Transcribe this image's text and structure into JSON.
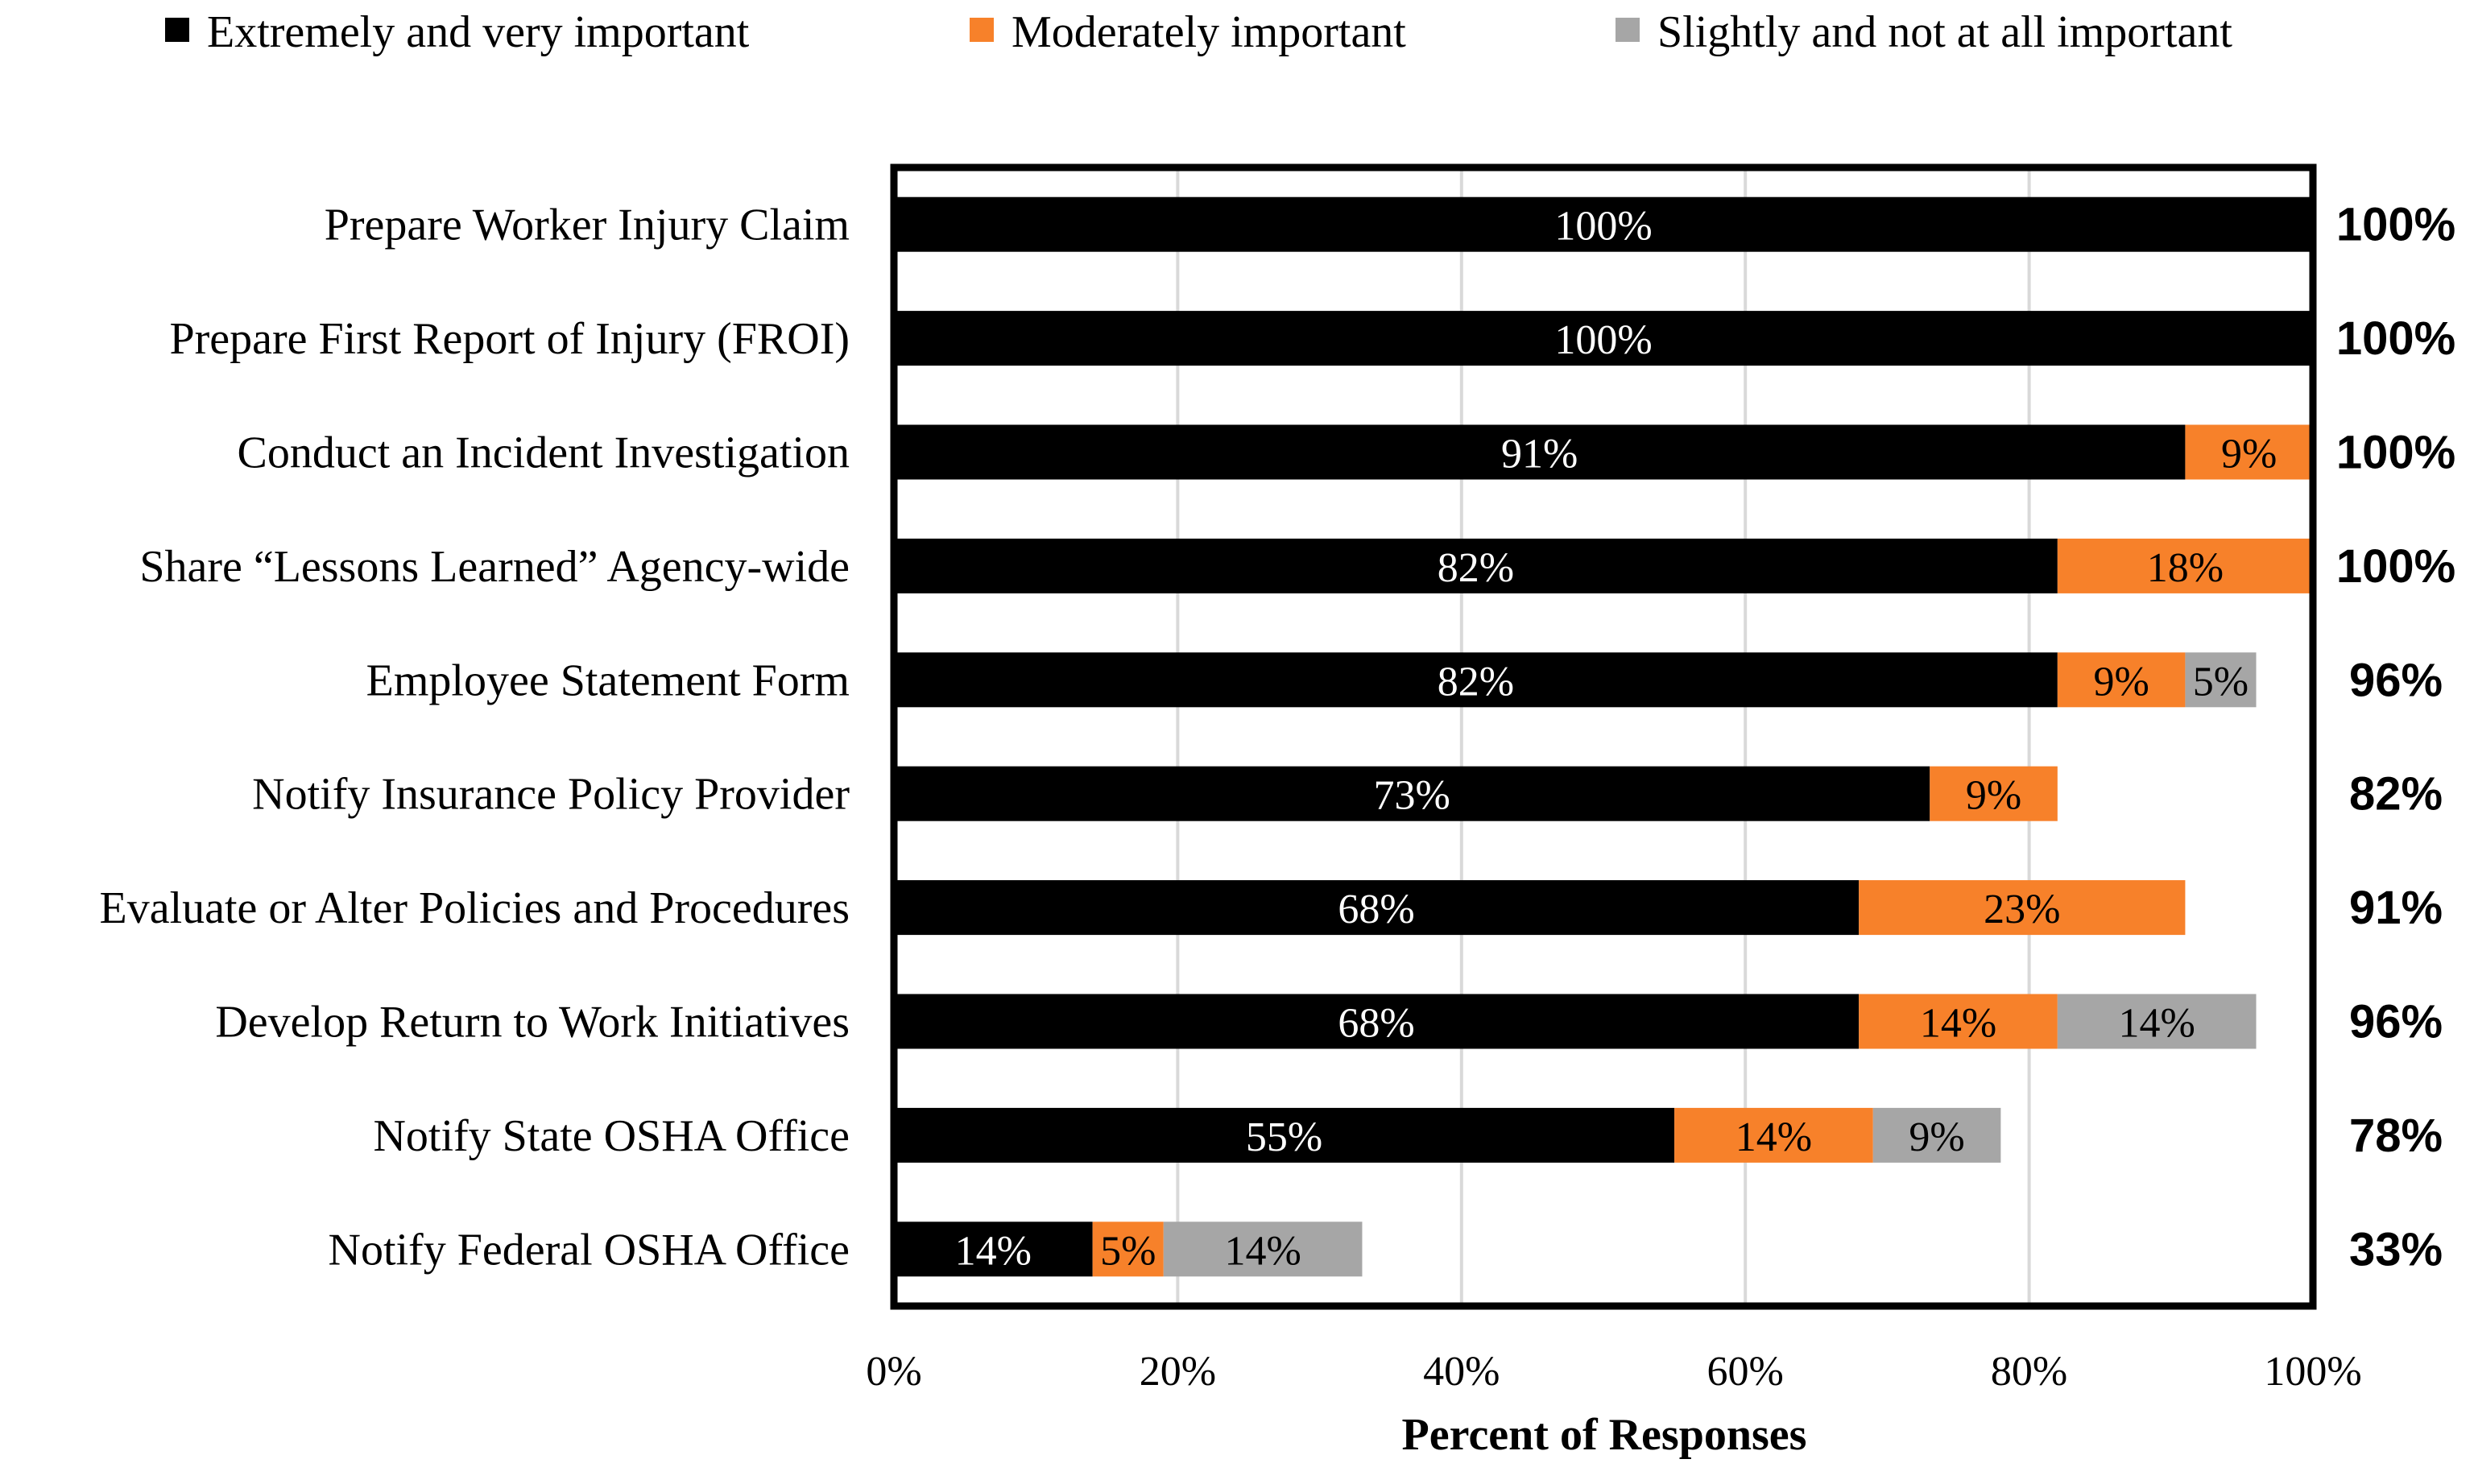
{
  "chart_data": {
    "type": "bar",
    "orientation": "horizontal",
    "stacked": true,
    "categories": [
      "Prepare Worker Injury Claim",
      "Prepare First Report of Injury (FROI)",
      "Conduct an Incident Investigation",
      "Share “Lessons Learned” Agency-wide",
      "Employee Statement Form",
      "Notify Insurance Policy Provider",
      "Evaluate or Alter Policies and Procedures",
      "Develop Return to Work Initiatives",
      "Notify State OSHA Office",
      "Notify Federal OSHA Office"
    ],
    "series": [
      {
        "name": "Extremely and very important",
        "color": "#000000",
        "label_color": "#ffffff",
        "values": [
          100,
          100,
          91,
          82,
          82,
          73,
          68,
          68,
          55,
          14
        ],
        "labels": [
          "100%",
          "100%",
          "91%",
          "82%",
          "82%",
          "73%",
          "68%",
          "68%",
          "55%",
          "14%"
        ]
      },
      {
        "name": "Moderately important",
        "color": "#f7812a",
        "label_color": "#000000",
        "values": [
          0,
          0,
          9,
          18,
          9,
          9,
          23,
          14,
          14,
          5
        ],
        "labels": [
          "",
          "",
          "9%",
          "18%",
          "9%",
          "9%",
          "23%",
          "14%",
          "14%",
          "5%"
        ]
      },
      {
        "name": "Slightly and not at all important",
        "color": "#a6a6a6",
        "label_color": "#000000",
        "values": [
          0,
          0,
          0,
          0,
          5,
          0,
          0,
          14,
          9,
          14
        ],
        "labels": [
          "",
          "",
          "",
          "",
          "5%",
          "",
          "",
          "14%",
          "9%",
          "14%"
        ]
      }
    ],
    "totals": [
      "100%",
      "100%",
      "100%",
      "100%",
      "96%",
      "82%",
      "91%",
      "96%",
      "78%",
      "33%"
    ],
    "xlabel": "Percent of Responses",
    "ylabel": "",
    "xlim": [
      0,
      100
    ],
    "xticks": [
      0,
      20,
      40,
      60,
      80,
      100
    ],
    "xtick_labels": [
      "0%",
      "20%",
      "40%",
      "60%",
      "80%",
      "100%"
    ],
    "grid": "vertical",
    "legend": "top"
  }
}
